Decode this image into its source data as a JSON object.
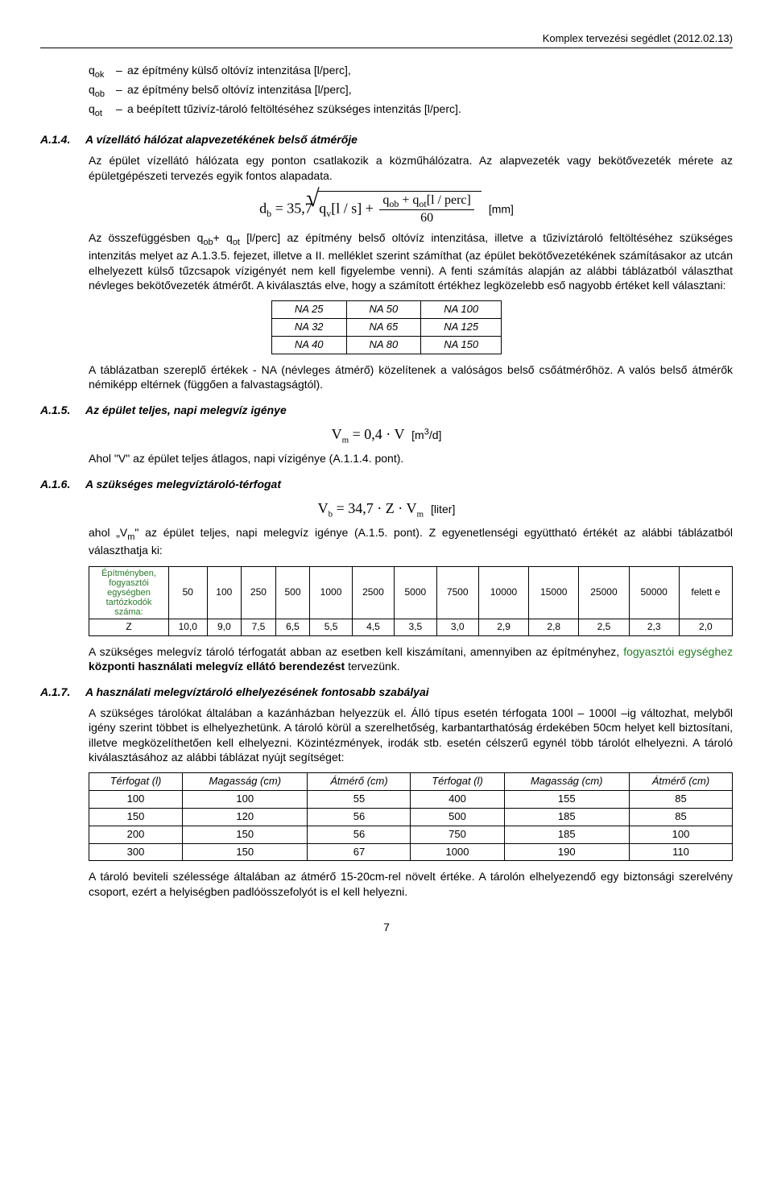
{
  "header": {
    "right": "Komplex tervezési segédlet (2012.02.13)"
  },
  "defs": [
    {
      "sym": "q<sub>ok</sub>",
      "text": "az építmény külső oltóvíz intenzitása [l/perc],"
    },
    {
      "sym": "q<sub>ob</sub>",
      "text": "az építmény belső oltóvíz intenzitása [l/perc],"
    },
    {
      "sym": "q<sub>ot</sub>",
      "text": "a beépített tűzivíz-tároló feltöltéséhez szükséges intenzitás [l/perc]."
    }
  ],
  "a14": {
    "num": "A.1.4.",
    "title": "A vízellátó hálózat alapvezetékének belső átmérője",
    "p1": "Az épület vízellátó hálózata egy ponton csatlakozik a közműhálózatra. Az alapvezeték vagy bekötővezeték mérete az épületgépészeti tervezés egyik fontos alapadata.",
    "formula_unit": "[mm]",
    "p2": "Az összefüggésben q<sub>ob</sub>+ q<sub>ot</sub> [l/perc] az építmény belső oltóvíz intenzitása, illetve a tűzivíztároló feltöltéséhez szükséges intenzitás melyet az  A.1.3.5. fejezet, illetve a II. melléklet szerint számíthat (az épület bekötővezetékének számításakor az utcán elhelyezett külső tűzcsapok vízigényét nem kell figyelembe venni). A fenti számítás alapján az alábbi táblázatból választhat névleges bekötővezeték átmérőt. A kiválasztás elve, hogy a számított értékhez legközelebb eső nagyobb értéket kell választani:",
    "na_table": [
      [
        "NA 25",
        "NA 50",
        "NA 100"
      ],
      [
        "NA 32",
        "NA 65",
        "NA 125"
      ],
      [
        "NA 40",
        "NA 80",
        "NA 150"
      ]
    ],
    "p3": "A táblázatban szereplő értékek - NA (névleges átmérő)  közelítenek a valóságos belső csőátmérőhöz. A valós belső átmérők némiképp eltérnek (függően a falvastagságtól)."
  },
  "a15": {
    "num": "A.1.5.",
    "title": "Az épület teljes, napi melegvíz igénye",
    "formula_text": "V<sub>m</sub> = 0,4 · V",
    "formula_unit": "[m³/d]",
    "p1": "Ahol \"V\" az épület teljes átlagos, napi vízigénye (A.1.1.4. pont)."
  },
  "a16": {
    "num": "A.1.6.",
    "title": "A szükséges melegvíztároló-térfogat",
    "formula_text": "V<sub>b</sub> = 34,7 · Z · V<sub>m</sub>",
    "formula_unit": "[liter]",
    "p1": "ahol „V<sub>m</sub>\" az épület teljes, napi melegvíz igénye (A.1.5. pont). Z egyenetlenségi együttható értékét az alábbi táblázatból választhatja ki:",
    "z_header_label": "Építményben, fogyasztói egységben tartózkodók száma:",
    "z_cols": [
      "50",
      "100",
      "250",
      "500",
      "1000",
      "2500",
      "5000",
      "7500",
      "10000",
      "15000",
      "25000",
      "50000",
      "felett e"
    ],
    "z_row_label": "Z",
    "z_vals": [
      "10,0",
      "9,0",
      "7,5",
      "6,5",
      "5,5",
      "4,5",
      "3,5",
      "3,0",
      "2,9",
      "2,8",
      "2,5",
      "2,3",
      "2,0"
    ],
    "p2a": "A szükséges melegvíz tároló térfogatát abban az esetben kell kiszámítani, amennyiben az építményhez, ",
    "p2green": "fogyasztói egységhez",
    "p2b": " központi használati melegvíz ellátó berendezést ",
    "p2c": "tervezünk."
  },
  "a17": {
    "num": "A.1.7.",
    "title": "A használati melegvíztároló elhelyezésének fontosabb szabályai",
    "p1": "A szükséges tárolókat általában a kazánházban helyezzük el. Álló típus esetén térfogata 100l – 1000l –ig változhat, melyből igény szerint többet is elhelyezhetünk. A tároló körül a szerelhetőség, karbantarthatóság érdekében 50cm helyet kell biztosítani, illetve megközelíthetően kell elhelyezni. Közintézmények, irodák stb. esetén célszerű egynél több tárolót elhelyezni. A tároló kiválasztásához az alábbi táblázat nyújt segítséget:",
    "tank_headers": [
      "Térfogat (l)",
      "Magasság (cm)",
      "Átmérő (cm)",
      "Térfogat (l)",
      "Magasság (cm)",
      "Átmérő (cm)"
    ],
    "tank_rows": [
      [
        "100",
        "100",
        "55",
        "400",
        "155",
        "85"
      ],
      [
        "150",
        "120",
        "56",
        "500",
        "185",
        "85"
      ],
      [
        "200",
        "150",
        "56",
        "750",
        "185",
        "100"
      ],
      [
        "300",
        "150",
        "67",
        "1000",
        "190",
        "110"
      ]
    ],
    "p2": "A tároló beviteli szélessége általában az átmérő 15-20cm-rel növelt értéke. A tárolón elhelyezendő egy biztonsági szerelvény csoport, ezért a helyiségben padlóösszefolyót is el kell helyezni."
  },
  "pagenum": "7"
}
